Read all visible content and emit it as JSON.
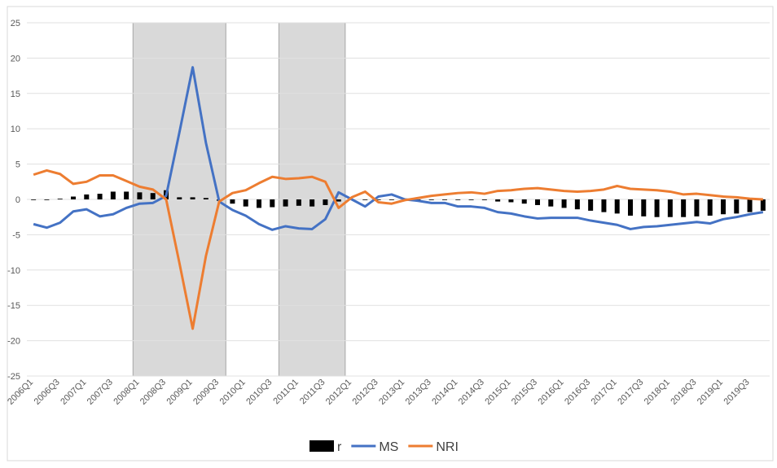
{
  "chart_data": {
    "type": "combo",
    "categories": [
      "2006Q1",
      null,
      "2006Q3",
      null,
      "2007Q1",
      null,
      "2007Q3",
      null,
      "2008Q1",
      null,
      "2008Q3",
      null,
      "2009Q1",
      null,
      "2009Q3",
      null,
      "2010Q1",
      null,
      "2010Q3",
      null,
      "2011Q1",
      null,
      "2011Q3",
      null,
      "2012Q1",
      null,
      "2012Q3",
      null,
      "2013Q1",
      null,
      "2013Q3",
      null,
      "2014Q1",
      null,
      "2014Q3",
      null,
      "2015Q1",
      null,
      "2015Q3",
      null,
      "2016Q1",
      null,
      "2016Q3",
      null,
      "2017Q1",
      null,
      "2017Q3",
      null,
      "2018Q1",
      null,
      "2018Q3",
      null,
      "2019Q1",
      null,
      "2019Q3",
      null
    ],
    "series": [
      {
        "name": "r",
        "type": "bar",
        "color": "#000000",
        "values": [
          0,
          0,
          0.1,
          0.4,
          0.7,
          0.8,
          1.1,
          1.1,
          1.0,
          0.9,
          1.3,
          0.3,
          0.3,
          0.2,
          -0.2,
          -0.6,
          -1.0,
          -1.2,
          -1.1,
          -1.0,
          -0.9,
          -1.0,
          -0.8,
          -0.3,
          0,
          0,
          0,
          0,
          0,
          0,
          0,
          0,
          0,
          0,
          -0.1,
          -0.3,
          -0.4,
          -0.6,
          -0.8,
          -1.0,
          -1.2,
          -1.4,
          -1.6,
          -1.8,
          -2.0,
          -2.3,
          -2.4,
          -2.5,
          -2.5,
          -2.5,
          -2.4,
          -2.3,
          -2.1,
          -2.0,
          -1.8,
          -1.6
        ]
      },
      {
        "name": "MS",
        "type": "line",
        "color": "#4472c4",
        "values": [
          -3.5,
          -4,
          -3.3,
          -1.7,
          -1.4,
          -2.4,
          -2.1,
          -1.2,
          -0.6,
          -0.5,
          0.5,
          9.5,
          18.7,
          8,
          -0.3,
          -1.5,
          -2.3,
          -3.5,
          -4.3,
          -3.8,
          -4.1,
          -4.2,
          -2.8,
          1,
          0,
          -1,
          0.4,
          0.7,
          0,
          -0.2,
          -0.5,
          -0.5,
          -1,
          -1,
          -1.2,
          -1.8,
          -2,
          -2.4,
          -2.7,
          -2.6,
          -2.6,
          -2.6,
          -3,
          -3.3,
          -3.6,
          -4.2,
          -3.9,
          -3.8,
          -3.6,
          -3.4,
          -3.2,
          -3.4,
          -2.8,
          -2.5,
          -2.1,
          -1.8
        ]
      },
      {
        "name": "NRI",
        "type": "line",
        "color": "#ed7d31",
        "values": [
          3.5,
          4.1,
          3.6,
          2.2,
          2.5,
          3.4,
          3.4,
          2.6,
          1.8,
          1.4,
          0,
          -9,
          -18.3,
          -8,
          -0.3,
          0.9,
          1.3,
          2.3,
          3.2,
          2.9,
          3.0,
          3.2,
          2.5,
          -1.2,
          0.3,
          1.1,
          -0.4,
          -0.6,
          -0.1,
          0.2,
          0.5,
          0.7,
          0.9,
          1,
          0.8,
          1.2,
          1.3,
          1.5,
          1.6,
          1.4,
          1.2,
          1.1,
          1.2,
          1.4,
          1.9,
          1.5,
          1.4,
          1.3,
          1.1,
          0.7,
          0.8,
          0.6,
          0.4,
          0.3,
          0.1,
          0
        ]
      }
    ],
    "shaded_periods": [
      [
        8,
        14
      ],
      [
        19,
        23
      ]
    ],
    "ylim": [
      -25,
      25
    ],
    "yticks": [
      -25,
      -20,
      -15,
      -10,
      -5,
      0,
      5,
      10,
      15,
      20,
      25
    ],
    "grid": true,
    "legend": "bottom"
  }
}
